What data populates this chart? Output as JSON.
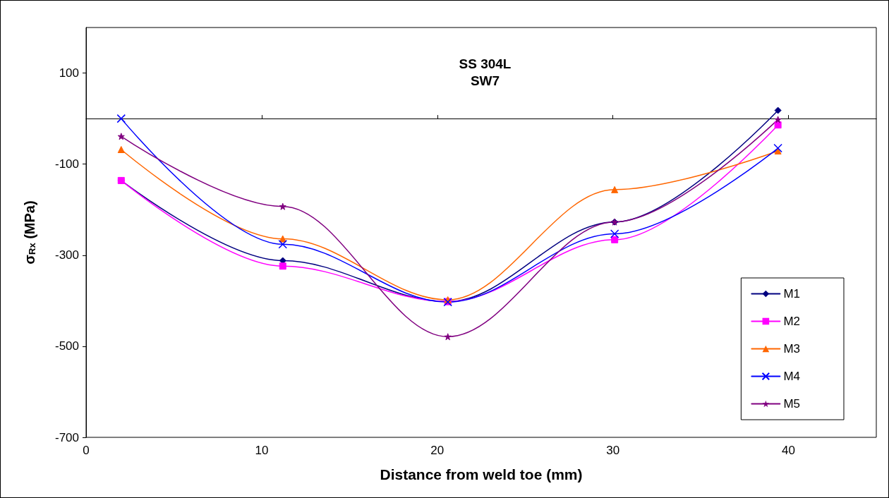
{
  "chart_data": {
    "type": "line",
    "title": "SS 304L\nSW7",
    "xlabel": "Distance from weld toe (mm)",
    "ylabel": "σ$_{Rx}$ (MPa)",
    "x": [
      2.0,
      11.2,
      20.6,
      30.1,
      39.4
    ],
    "series": [
      {
        "name": "M1",
        "color": "#000080",
        "marker": "diamond",
        "values": [
          -136,
          -312,
          -402,
          -227,
          18
        ]
      },
      {
        "name": "M2",
        "color": "#ff00ff",
        "marker": "square",
        "values": [
          -136,
          -324,
          -402,
          -266,
          -14
        ]
      },
      {
        "name": "M3",
        "color": "#ff6600",
        "marker": "triangle",
        "values": [
          -68,
          -264,
          -398,
          -156,
          -71
        ]
      },
      {
        "name": "M4",
        "color": "#0000ff",
        "marker": "cross",
        "values": [
          0,
          -276,
          -403,
          -253,
          -65
        ]
      },
      {
        "name": "M5",
        "color": "#800080",
        "marker": "star",
        "values": [
          -39,
          -193,
          -479,
          -227,
          -2
        ]
      }
    ],
    "xlim": [
      0,
      45
    ],
    "xticks": [
      0,
      10,
      20,
      30,
      40
    ],
    "ylim": [
      -700,
      200
    ],
    "yticks": [
      -700,
      -500,
      -300,
      -100,
      100
    ],
    "grid": false,
    "legend": "bottom right",
    "line_style": "solid"
  }
}
